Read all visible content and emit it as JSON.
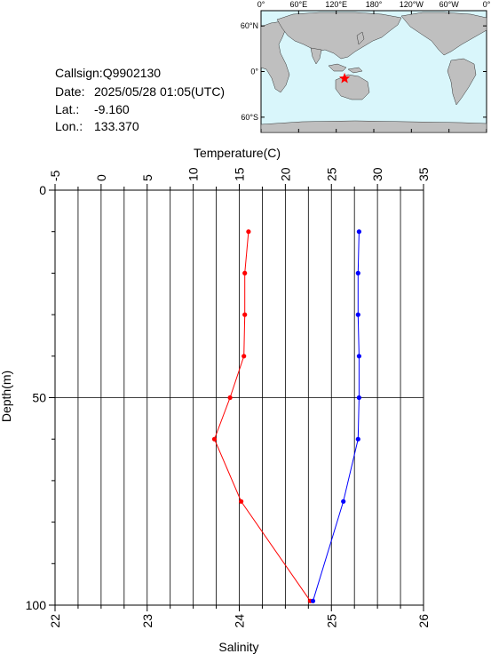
{
  "station": {
    "callsign": "Callsign:Q9902130",
    "date_label": "Date:",
    "date_value": "2025/05/28 01:05(UTC)",
    "lat_label": "Lat.:",
    "lat_value": "-9.160",
    "lon_label": "Lon.:",
    "lon_value": "133.370"
  },
  "map": {
    "top_ticks": [
      "0°",
      "60°E",
      "120°E",
      "180°",
      "120°W",
      "60°W",
      "0°"
    ],
    "lat_ticks": [
      "60°N",
      "0°",
      "60°S"
    ],
    "colors": {
      "ocean": "#d9f6fb",
      "land": "#bfbfbf",
      "marker": "#ff0000"
    }
  },
  "chart_data": {
    "type": "line",
    "xlabel_top": "Temperature(C)",
    "xlabel_bottom": "Salinity",
    "ylabel": "Depth(m)",
    "temperature_ticks": [
      "-5",
      "0",
      "5",
      "10",
      "15",
      "20",
      "25",
      "30",
      "35"
    ],
    "salinity_ticks": [
      "22",
      "23",
      "24",
      "25",
      "26"
    ],
    "depth_ticks": [
      "0",
      "50",
      "100"
    ],
    "temp_range": [
      -5,
      35
    ],
    "salinity_range": [
      22,
      26
    ],
    "depth_range": [
      0,
      100
    ],
    "grid": true,
    "series": [
      {
        "quantity": "temperature",
        "color": "#ff0000",
        "points": [
          {
            "depth": 10,
            "value": 16.0
          },
          {
            "depth": 20,
            "value": 15.6
          },
          {
            "depth": 30,
            "value": 15.6
          },
          {
            "depth": 40,
            "value": 15.5
          },
          {
            "depth": 50,
            "value": 14.0
          },
          {
            "depth": 60,
            "value": 12.3
          },
          {
            "depth": 75,
            "value": 15.2
          },
          {
            "depth": 99,
            "value": 22.7
          }
        ]
      },
      {
        "quantity": "salinity",
        "color": "#0000ff",
        "points": [
          {
            "depth": 10,
            "value": 25.3
          },
          {
            "depth": 20,
            "value": 25.29
          },
          {
            "depth": 30,
            "value": 25.29
          },
          {
            "depth": 40,
            "value": 25.3
          },
          {
            "depth": 50,
            "value": 25.3
          },
          {
            "depth": 60,
            "value": 25.29
          },
          {
            "depth": 75,
            "value": 25.13
          },
          {
            "depth": 99,
            "value": 24.8
          }
        ]
      }
    ]
  }
}
